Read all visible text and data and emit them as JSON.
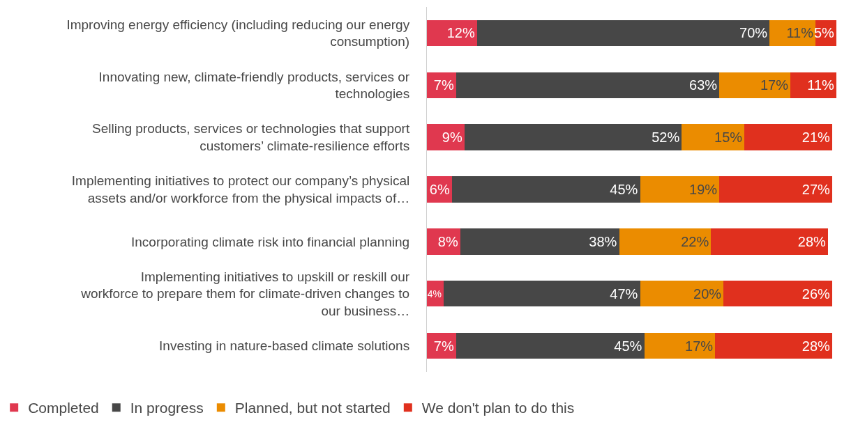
{
  "chart_data": {
    "type": "bar",
    "orientation": "horizontal",
    "stacked": true,
    "tick_labels": "y",
    "grid": false,
    "legend": "bottom left",
    "categories": [
      "Improving energy efficiency (including reducing our energy consumption)",
      "Innovating new, climate-friendly products, services or technologies",
      "Selling products, services or technologies that support customers’ climate-resilience efforts",
      "Implementing initiatives to protect our company’s physical assets and/or workforce from the physical impacts of…",
      "Incorporating climate risk into financial planning",
      "Implementing initiatives to upskill or reskill our workforce to prepare them for climate-driven changes to our business…",
      "Investing in nature-based climate solutions"
    ],
    "series": [
      {
        "name": "Completed",
        "color": "#e0384f",
        "values": [
          12,
          7,
          9,
          6,
          8,
          4,
          7
        ],
        "value_labels": [
          "12%",
          "7%",
          "9%",
          "6%",
          "8%",
          "4%",
          "7%"
        ]
      },
      {
        "name": "In progress",
        "color": "#474747",
        "values": [
          70,
          63,
          52,
          45,
          38,
          47,
          45
        ],
        "value_labels": [
          "70%",
          "63%",
          "52%",
          "45%",
          "38%",
          "47%",
          "45%"
        ]
      },
      {
        "name": "Planned, but not started",
        "color": "#eb8c00",
        "values": [
          11,
          17,
          15,
          19,
          22,
          20,
          17
        ],
        "value_labels": [
          "11%",
          "17%",
          "15%",
          "19%",
          "22%",
          "20%",
          "17%"
        ]
      },
      {
        "name": "We don't plan to do this",
        "color": "#e0301e",
        "values": [
          5,
          11,
          21,
          27,
          28,
          26,
          28
        ],
        "value_labels": [
          "5%",
          "11%",
          "21%",
          "27%",
          "28%",
          "26%",
          "28%"
        ]
      }
    ]
  }
}
